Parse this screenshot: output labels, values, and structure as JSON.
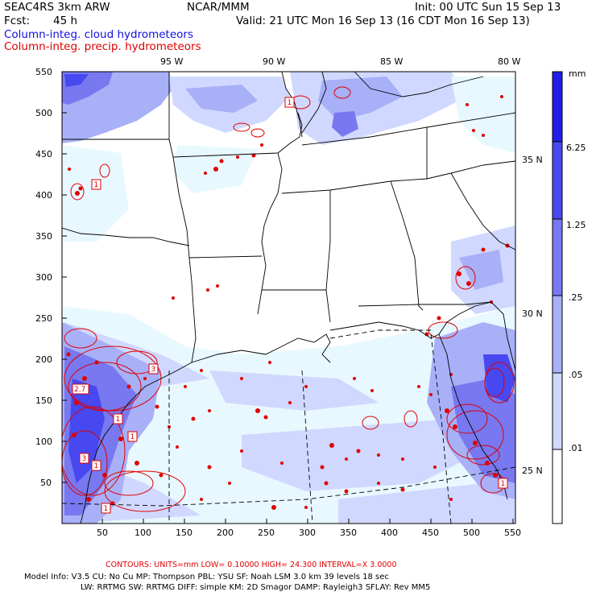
{
  "header": {
    "model": "SEAC4RS  3km ARW",
    "center": "NCAR/MMM",
    "init": "Init: 00 UTC Sun 15 Sep 13",
    "fcst_label": "Fcst:",
    "fcst_value": "45 h",
    "valid": "Valid: 21 UTC Mon 16 Sep 13 (16 CDT Mon 16 Sep 13)",
    "line_blue": "Column-integ. cloud hydrometeors",
    "line_red": "Column-integ. precip. hydrometeors"
  },
  "axes": {
    "x_ticks": [
      "50",
      "100",
      "150",
      "200",
      "250",
      "300",
      "350",
      "400",
      "450",
      "500",
      "550"
    ],
    "y_ticks": [
      "50",
      "100",
      "150",
      "200",
      "250",
      "300",
      "350",
      "400",
      "450",
      "500",
      "550"
    ],
    "lon_labels": [
      "95 W",
      "90 W",
      "85 W",
      "80 W"
    ],
    "lat_labels": [
      "35 N",
      "30 N",
      "25 N"
    ]
  },
  "colorbar": {
    "unit": "mm",
    "labels": [
      "6.25",
      "1.25",
      ".25",
      ".05",
      ".01"
    ],
    "colors": [
      "#2020e8",
      "#4848f0",
      "#7878f0",
      "#a8b0f8",
      "#d0d8ff",
      "#e8f8ff",
      "#ffffff"
    ]
  },
  "contour_box_labels": [
    "1",
    "1",
    "2.7",
    "3",
    "1",
    "1",
    "1",
    "3",
    "1",
    "1"
  ],
  "footer": {
    "contours": "CONTOURS:  UNITS=mm   LOW=  0.10000       HIGH=  24.300       INTERVAL=X  3.0000",
    "row1": "Model Info: V3.5       CU: No Cu     MP: Thompson     PBL: YSU        SF: Noah LSM      3.0 km   39 levels   18 sec",
    "row2": "LW: RRTMG     SW: RRTMG   DIFF: simple KM: 2D Smagor DAMP: Rayleigh3   SFLAY: Rev MM5"
  }
}
